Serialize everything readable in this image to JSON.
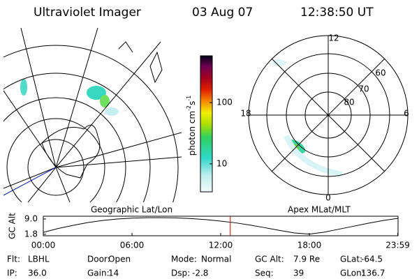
{
  "header": {
    "instrument": "Ultraviolet Imager",
    "date": "03 Aug 07",
    "time": "12:38:50 UT"
  },
  "map": {
    "label": "Geographic Lat/Lon"
  },
  "polar": {
    "label": "Apex MLat/MLT",
    "mlt": [
      "12",
      "18",
      "6",
      "0"
    ],
    "rings": [
      "60",
      "70",
      "80"
    ]
  },
  "colorbar": {
    "unit": [
      "photon cm",
      "-2",
      "s",
      "-1"
    ],
    "ylim": [
      3.5,
      580
    ],
    "log": true,
    "yticks": [
      10,
      100
    ]
  },
  "chart_data": {
    "type": "line",
    "y_label": "GC Alt",
    "x": [
      0,
      1,
      2,
      3,
      4,
      5,
      6,
      7,
      8,
      9,
      10,
      11,
      12,
      13,
      14,
      15,
      16,
      17,
      18,
      19,
      20,
      21,
      22,
      23,
      24
    ],
    "values": [
      2.7,
      4.5,
      6.0,
      7.3,
      8.3,
      9.0,
      9.4,
      9.6,
      9.6,
      9.5,
      9.2,
      8.7,
      8.0,
      7.2,
      6.1,
      4.9,
      3.6,
      2.4,
      1.9,
      2.8,
      4.2,
      5.6,
      7.0,
      8.3,
      9.3
    ],
    "color": "#000000",
    "xlim": [
      0,
      24
    ],
    "xticks": [
      {
        "value": 0,
        "label": "00:00"
      },
      {
        "value": 6,
        "label": "06:00"
      },
      {
        "value": 12,
        "label": "12:00"
      },
      {
        "value": 18,
        "label": "18:00"
      },
      {
        "value": 23.98,
        "label": "23:59"
      }
    ],
    "ylim": [
      1.1,
      10.3
    ],
    "yticks": [
      {
        "value": 9,
        "label": "9.0"
      },
      {
        "value": 1.8,
        "label": "1.8"
      }
    ],
    "marker_x": 12.65,
    "marker_color": "#e00000"
  },
  "info": [
    [
      {
        "label": "Flt:",
        "value": "LBHL"
      },
      {
        "label": "Door:",
        "value": "Open"
      },
      {
        "label": "Mode:",
        "value": "Normal"
      },
      {
        "label": "GC Alt:",
        "value": "7.9 Re"
      },
      {
        "label": "GLat:",
        "value": "-64.5"
      }
    ],
    [
      {
        "label": "IP:",
        "value": "36.0"
      },
      {
        "label": "Gain:",
        "value": "14"
      },
      {
        "label": "Dsp:",
        "value": "-2.8"
      },
      {
        "label": "Seq:",
        "value": "39"
      },
      {
        "label": "GLon:",
        "value": "136.7"
      }
    ]
  ]
}
